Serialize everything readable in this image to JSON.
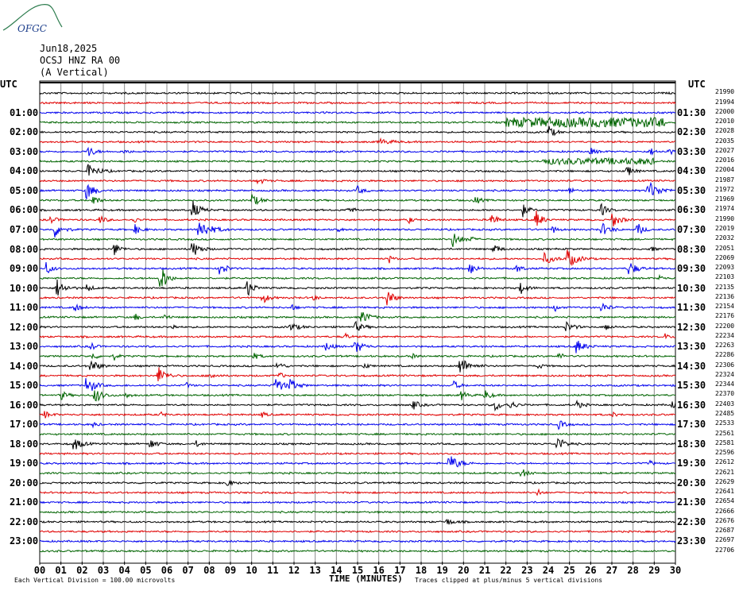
{
  "logo": {
    "text": "OFGC",
    "color": "#2e7d4f"
  },
  "header": {
    "date": "Jun18,2025",
    "station": "OCSJ HNZ RA 00",
    "component": "(A Vertical)"
  },
  "utc_label": "UTC",
  "colors": {
    "black": "#000000",
    "red": "#e00000",
    "blue": "#0000ee",
    "green": "#006400",
    "grid": "#8a8a8a"
  },
  "chart_data": {
    "type": "line",
    "title": "",
    "xlabel": "TIME (MINUTES)",
    "ylabel": "",
    "x_ticks": [
      "00",
      "01",
      "02",
      "03",
      "04",
      "05",
      "06",
      "07",
      "08",
      "09",
      "10",
      "11",
      "12",
      "13",
      "14",
      "15",
      "16",
      "17",
      "18",
      "19",
      "20",
      "21",
      "22",
      "23",
      "24",
      "25",
      "26",
      "27",
      "28",
      "29",
      "30"
    ],
    "xlim": [
      0,
      30
    ],
    "left_labels": [
      "UTC",
      "01:00",
      "02:00",
      "03:00",
      "04:00",
      "05:00",
      "06:00",
      "07:00",
      "08:00",
      "09:00",
      "10:00",
      "11:00",
      "12:00",
      "13:00",
      "14:00",
      "15:00",
      "16:00",
      "17:00",
      "18:00",
      "19:00",
      "20:00",
      "21:00",
      "22:00",
      "23:00"
    ],
    "right_labels": [
      "UTC",
      "01:30",
      "02:30",
      "03:30",
      "04:30",
      "05:30",
      "06:30",
      "07:30",
      "08:30",
      "09:30",
      "10:30",
      "11:30",
      "12:30",
      "13:30",
      "14:30",
      "15:30",
      "16:30",
      "17:30",
      "18:30",
      "19:30",
      "20:30",
      "21:30",
      "22:30",
      "23:30"
    ],
    "trace_counts": [
      "21990",
      "21994",
      "22000",
      "22010",
      "22028",
      "22035",
      "22027",
      "22016",
      "22004",
      "21987",
      "21972",
      "21969",
      "21974",
      "21990",
      "22019",
      "22032",
      "22051",
      "22069",
      "22093",
      "22103",
      "22135",
      "22136",
      "22154",
      "22176",
      "22200",
      "22234",
      "22263",
      "22286",
      "22306",
      "22324",
      "22344",
      "22370",
      "22403",
      "22485",
      "22533",
      "22561",
      "22581",
      "22596",
      "22612",
      "22621",
      "22629",
      "22641",
      "22654",
      "22666",
      "22676",
      "22687",
      "22697",
      "22706"
    ],
    "trace_colors": [
      "black",
      "red",
      "blue",
      "green"
    ],
    "events": [
      [
        1,
        33,
        10,
        2.5
      ],
      [
        4,
        24,
        9,
        1.5
      ],
      [
        5,
        16,
        4,
        3
      ],
      [
        6,
        2.3,
        8,
        1.5
      ],
      [
        6,
        28.8,
        5,
        1.2
      ],
      [
        6,
        26,
        4,
        1.5
      ],
      [
        6,
        4,
        4,
        1
      ],
      [
        8,
        2.3,
        9,
        2.5
      ],
      [
        8,
        27.7,
        8,
        1.5
      ],
      [
        9,
        10.3,
        5,
        1.5
      ],
      [
        10,
        2.2,
        12,
        2
      ],
      [
        10,
        28.7,
        12,
        3
      ],
      [
        10,
        15,
        5,
        1.5
      ],
      [
        10,
        25,
        5,
        1
      ],
      [
        11,
        2.5,
        7,
        1.5
      ],
      [
        11,
        10,
        8,
        2
      ],
      [
        11,
        20.5,
        6,
        1.5
      ],
      [
        12,
        7.2,
        12,
        2
      ],
      [
        12,
        14.5,
        6,
        1.5
      ],
      [
        12,
        22.8,
        8,
        1.5
      ],
      [
        12,
        26.5,
        8,
        1.5
      ],
      [
        13,
        0.5,
        5,
        1.5
      ],
      [
        13,
        2.8,
        6,
        1.5
      ],
      [
        13,
        4.4,
        5,
        1
      ],
      [
        13,
        17.4,
        5,
        1
      ],
      [
        13,
        21.3,
        9,
        1.5
      ],
      [
        13,
        23.4,
        14,
        1.5
      ],
      [
        13,
        27,
        10,
        2
      ],
      [
        14,
        7.5,
        14,
        3
      ],
      [
        14,
        0.7,
        10,
        2
      ],
      [
        14,
        4.5,
        6,
        1.5
      ],
      [
        14,
        14,
        4,
        1
      ],
      [
        14,
        24.2,
        6,
        1
      ],
      [
        14,
        26.5,
        9,
        2
      ],
      [
        14,
        28.2,
        9,
        1.5
      ],
      [
        15,
        19.5,
        10,
        2
      ],
      [
        15,
        20.3,
        4,
        1
      ],
      [
        16,
        3.5,
        9,
        1.5
      ],
      [
        16,
        7.2,
        11,
        2
      ],
      [
        16,
        21.4,
        7,
        1.5
      ],
      [
        16,
        28.8,
        5,
        1
      ],
      [
        17,
        23.8,
        7,
        2.5
      ],
      [
        17,
        24.9,
        12,
        2.5
      ],
      [
        17,
        16.5,
        5,
        1
      ],
      [
        18,
        0.3,
        8,
        1.5
      ],
      [
        18,
        8.5,
        12,
        1.5
      ],
      [
        18,
        20.3,
        9,
        1.5
      ],
      [
        18,
        27.8,
        10,
        2
      ],
      [
        18,
        22.5,
        5,
        1.5
      ],
      [
        19,
        5.6,
        14,
        1.5
      ],
      [
        19,
        5.8,
        9,
        1.5
      ],
      [
        19,
        29.2,
        5,
        1
      ],
      [
        20,
        0.8,
        12,
        2
      ],
      [
        20,
        2.2,
        5,
        1.5
      ],
      [
        20,
        9.8,
        12,
        1.5
      ],
      [
        20,
        22.7,
        8,
        1.5
      ],
      [
        21,
        16.4,
        14,
        1.5
      ],
      [
        21,
        10.5,
        8,
        1.5
      ],
      [
        21,
        12.9,
        4,
        1
      ],
      [
        22,
        1.6,
        6,
        1.5
      ],
      [
        22,
        11.9,
        4,
        1
      ],
      [
        22,
        26.5,
        8,
        1.5
      ],
      [
        22,
        24.3,
        5,
        1
      ],
      [
        23,
        5.9,
        5,
        1
      ],
      [
        23,
        4.5,
        5,
        1
      ],
      [
        23,
        15.2,
        9,
        2
      ],
      [
        24,
        6.2,
        5,
        1
      ],
      [
        24,
        11.8,
        6,
        2
      ],
      [
        24,
        14.9,
        6,
        2
      ],
      [
        24,
        24.8,
        7,
        2
      ],
      [
        24,
        26.7,
        6,
        1
      ],
      [
        25,
        14.4,
        5,
        1
      ],
      [
        25,
        29.5,
        4,
        1
      ],
      [
        26,
        13.5,
        7,
        1.5
      ],
      [
        26,
        14.9,
        9,
        2
      ],
      [
        26,
        2.4,
        8,
        1
      ],
      [
        26,
        25.3,
        10,
        2
      ],
      [
        27,
        2.5,
        6,
        1
      ],
      [
        27,
        3.5,
        5,
        1
      ],
      [
        27,
        10,
        6,
        1.5
      ],
      [
        27,
        17.5,
        5,
        1
      ],
      [
        27,
        24.5,
        6,
        1
      ],
      [
        28,
        2.4,
        9,
        2
      ],
      [
        28,
        19.8,
        12,
        2.5
      ],
      [
        28,
        11.2,
        6,
        1.5
      ],
      [
        28,
        15.3,
        5,
        1
      ],
      [
        28,
        23.5,
        5,
        1
      ],
      [
        29,
        5.6,
        12,
        2
      ],
      [
        29,
        8,
        5,
        1.5
      ],
      [
        29,
        11.3,
        5,
        1
      ],
      [
        30,
        2.2,
        14,
        2
      ],
      [
        30,
        11.1,
        12,
        2
      ],
      [
        30,
        11.8,
        8,
        2
      ],
      [
        30,
        19.5,
        6,
        1.5
      ],
      [
        30,
        6.9,
        4,
        1
      ],
      [
        31,
        2.6,
        10,
        2
      ],
      [
        31,
        1,
        6,
        1.5
      ],
      [
        31,
        4,
        4,
        1.5
      ],
      [
        31,
        19.9,
        6,
        1.5
      ],
      [
        31,
        21,
        7,
        1.5
      ],
      [
        32,
        17.6,
        7,
        1.5
      ],
      [
        32,
        21.5,
        8,
        1.5
      ],
      [
        32,
        22.2,
        6,
        1.5
      ],
      [
        32,
        29.8,
        6,
        1
      ],
      [
        32,
        25.3,
        6,
        1.5
      ],
      [
        33,
        0.2,
        5,
        1.5
      ],
      [
        33,
        5.7,
        4,
        1
      ],
      [
        33,
        10.5,
        4,
        1
      ],
      [
        33,
        27,
        4,
        1
      ],
      [
        34,
        2.5,
        4,
        1
      ],
      [
        34,
        24.5,
        6,
        1.5
      ],
      [
        36,
        1.6,
        9,
        2
      ],
      [
        36,
        5.2,
        8,
        1.5
      ],
      [
        36,
        24.4,
        10,
        2
      ],
      [
        36,
        7.4,
        5,
        1
      ],
      [
        38,
        19.3,
        12,
        2.5
      ],
      [
        38,
        28.8,
        4,
        0.8
      ],
      [
        39,
        22.7,
        7,
        1.5
      ],
      [
        40,
        8.8,
        5,
        1.5
      ],
      [
        41,
        23.5,
        5,
        1
      ],
      [
        44,
        19.2,
        4,
        2
      ]
    ],
    "noise_bands": [
      [
        3,
        22,
        29.5,
        5
      ],
      [
        7,
        23.7,
        29,
        3
      ],
      [
        6,
        29.5,
        30,
        2
      ]
    ]
  },
  "footer": {
    "division": "Each Vertical Division =  100.00 microvolts",
    "clipping": "Traces clipped at plus/minus 5 vertical divisions"
  }
}
